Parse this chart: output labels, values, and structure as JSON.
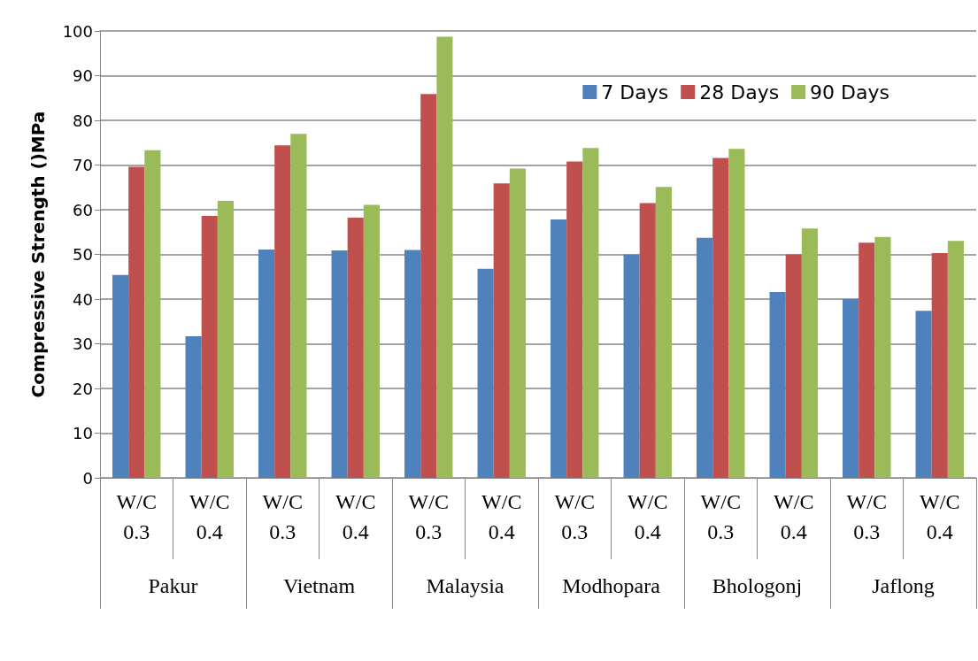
{
  "chart_data": {
    "type": "bar",
    "ylabel": "Compressive Strength ()MPa",
    "categories": [
      "W/C 0.3",
      "W/C 0.4",
      "W/C 0.3",
      "W/C 0.4",
      "W/C 0.3",
      "W/C 0.4",
      "W/C 0.3",
      "W/C 0.4",
      "W/C 0.3",
      "W/C 0.4",
      "W/C 0.3",
      "W/C 0.4"
    ],
    "series": [
      {
        "name": "7 Days",
        "color": "#4f81bd",
        "values": [
          45.4,
          31.7,
          51.1,
          50.9,
          51.0,
          46.8,
          57.8,
          50.0,
          53.7,
          41.6,
          40.0,
          37.4
        ]
      },
      {
        "name": "28 Days",
        "color": "#c0504d",
        "values": [
          69.6,
          58.6,
          74.4,
          58.2,
          85.9,
          65.9,
          70.8,
          61.5,
          71.6,
          50.0,
          52.6,
          50.3
        ]
      },
      {
        "name": "90 Days",
        "color": "#9bbb59",
        "values": [
          73.3,
          62.0,
          77.0,
          61.1,
          98.7,
          69.2,
          73.8,
          65.1,
          73.6,
          55.8,
          53.9,
          53.0
        ]
      }
    ],
    "annotations": [
      "Pakur",
      "Vietnam",
      "Malaysia",
      "Modhopara",
      "Bhologonj",
      "Jaflong"
    ],
    "ylim": [
      0,
      100
    ],
    "yticks": [
      0,
      10,
      20,
      30,
      40,
      50,
      60,
      70,
      80,
      90,
      100
    ],
    "grid": "y",
    "legend": "top right"
  }
}
